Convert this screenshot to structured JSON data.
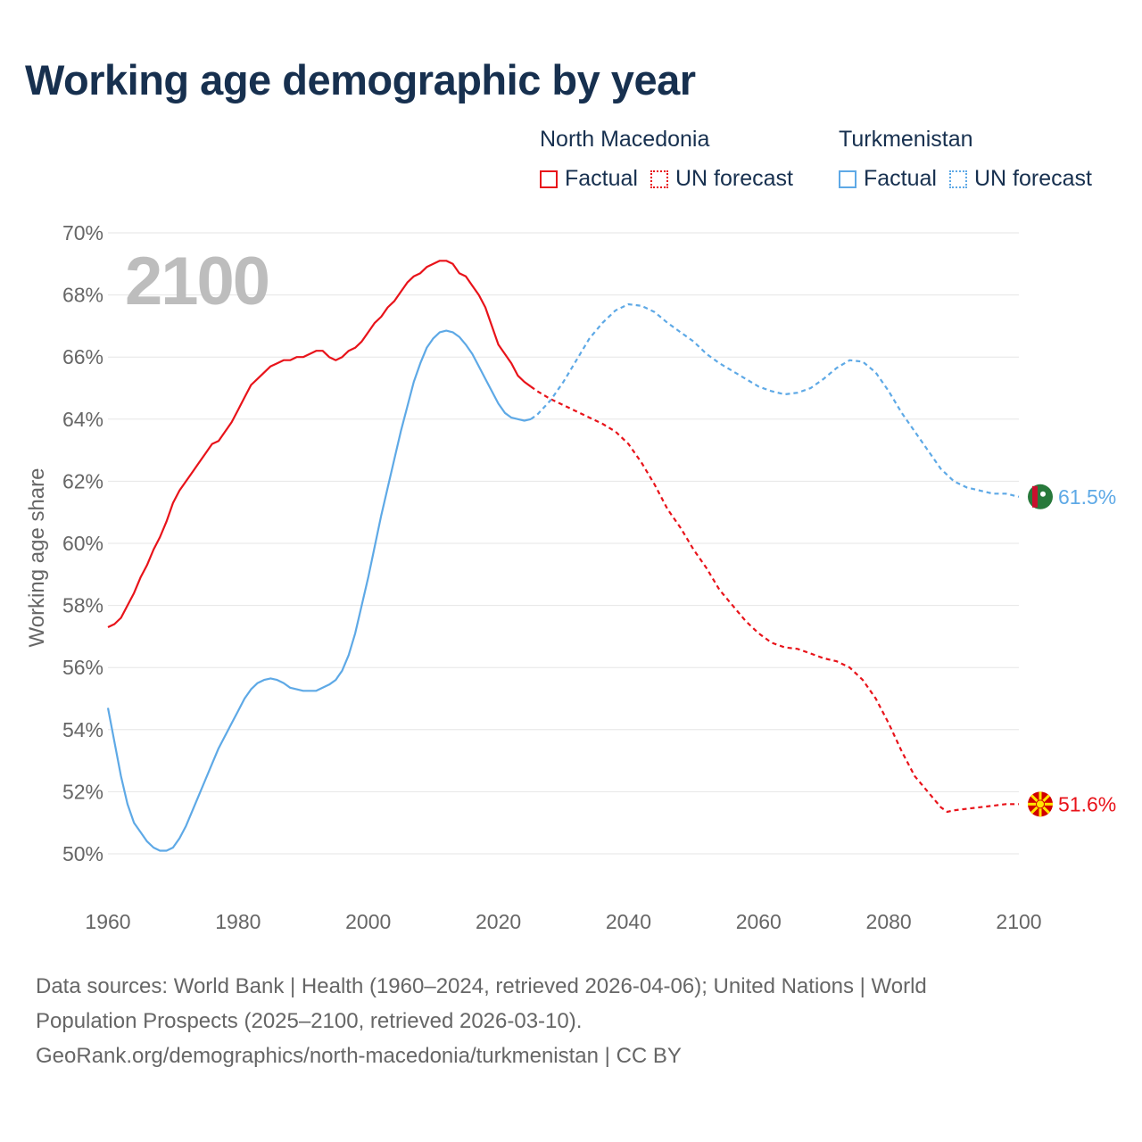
{
  "title": "Working age demographic by year",
  "year_overlay": "2100",
  "legend": {
    "groups": [
      {
        "name": "North Macedonia",
        "factual": "Factual",
        "forecast": "UN forecast",
        "color": "#e8131a"
      },
      {
        "name": "Turkmenistan",
        "factual": "Factual",
        "forecast": "UN forecast",
        "color": "#5ea9e6"
      }
    ]
  },
  "footer": {
    "line1": "Data sources: World Bank | Health (1960–2024, retrieved 2026-04-06); United Nations | World",
    "line2": "Population Prospects (2025–2100, retrieved 2026-03-10).",
    "line3": "GeoRank.org/demographics/north-macedonia/turkmenistan | CC BY"
  },
  "chart_data": {
    "type": "line",
    "title": "Working age demographic by year",
    "xlabel": "",
    "ylabel": "Working age share",
    "xlim": [
      1960,
      2100
    ],
    "ylim": [
      49,
      70
    ],
    "x_ticks": [
      1960,
      1980,
      2000,
      2020,
      2040,
      2060,
      2080,
      2100
    ],
    "y_ticks": [
      50,
      52,
      54,
      56,
      58,
      60,
      62,
      64,
      66,
      68,
      70
    ],
    "y_tick_labels": [
      "50%",
      "52%",
      "54%",
      "56%",
      "58%",
      "60%",
      "62%",
      "64%",
      "66%",
      "68%",
      "70%"
    ],
    "grid": true,
    "forecast_start_year": 2025,
    "series": [
      {
        "name": "North Macedonia",
        "color": "#e8131a",
        "end_label": "51.6%",
        "points": [
          [
            1960,
            57.3
          ],
          [
            1961,
            57.4
          ],
          [
            1962,
            57.6
          ],
          [
            1963,
            58.0
          ],
          [
            1964,
            58.4
          ],
          [
            1965,
            58.9
          ],
          [
            1966,
            59.3
          ],
          [
            1967,
            59.8
          ],
          [
            1968,
            60.2
          ],
          [
            1969,
            60.7
          ],
          [
            1970,
            61.3
          ],
          [
            1971,
            61.7
          ],
          [
            1972,
            62.0
          ],
          [
            1973,
            62.3
          ],
          [
            1974,
            62.6
          ],
          [
            1975,
            62.9
          ],
          [
            1976,
            63.2
          ],
          [
            1977,
            63.3
          ],
          [
            1978,
            63.6
          ],
          [
            1979,
            63.9
          ],
          [
            1980,
            64.3
          ],
          [
            1981,
            64.7
          ],
          [
            1982,
            65.1
          ],
          [
            1983,
            65.3
          ],
          [
            1984,
            65.5
          ],
          [
            1985,
            65.7
          ],
          [
            1986,
            65.8
          ],
          [
            1987,
            65.9
          ],
          [
            1988,
            65.9
          ],
          [
            1989,
            66.0
          ],
          [
            1990,
            66.0
          ],
          [
            1991,
            66.1
          ],
          [
            1992,
            66.2
          ],
          [
            1993,
            66.2
          ],
          [
            1994,
            66.0
          ],
          [
            1995,
            65.9
          ],
          [
            1996,
            66.0
          ],
          [
            1997,
            66.2
          ],
          [
            1998,
            66.3
          ],
          [
            1999,
            66.5
          ],
          [
            2000,
            66.8
          ],
          [
            2001,
            67.1
          ],
          [
            2002,
            67.3
          ],
          [
            2003,
            67.6
          ],
          [
            2004,
            67.8
          ],
          [
            2005,
            68.1
          ],
          [
            2006,
            68.4
          ],
          [
            2007,
            68.6
          ],
          [
            2008,
            68.7
          ],
          [
            2009,
            68.9
          ],
          [
            2010,
            69.0
          ],
          [
            2011,
            69.1
          ],
          [
            2012,
            69.1
          ],
          [
            2013,
            69.0
          ],
          [
            2014,
            68.7
          ],
          [
            2015,
            68.6
          ],
          [
            2016,
            68.3
          ],
          [
            2017,
            68.0
          ],
          [
            2018,
            67.6
          ],
          [
            2019,
            67.0
          ],
          [
            2020,
            66.4
          ],
          [
            2021,
            66.1
          ],
          [
            2022,
            65.8
          ],
          [
            2023,
            65.4
          ],
          [
            2024,
            65.2
          ],
          [
            2025,
            65.05
          ],
          [
            2026,
            64.9
          ],
          [
            2028,
            64.65
          ],
          [
            2030,
            64.45
          ],
          [
            2032,
            64.25
          ],
          [
            2034,
            64.05
          ],
          [
            2036,
            63.85
          ],
          [
            2038,
            63.6
          ],
          [
            2040,
            63.2
          ],
          [
            2042,
            62.6
          ],
          [
            2044,
            61.9
          ],
          [
            2046,
            61.1
          ],
          [
            2048,
            60.5
          ],
          [
            2050,
            59.8
          ],
          [
            2052,
            59.2
          ],
          [
            2054,
            58.5
          ],
          [
            2056,
            58.0
          ],
          [
            2058,
            57.5
          ],
          [
            2060,
            57.1
          ],
          [
            2062,
            56.8
          ],
          [
            2064,
            56.65
          ],
          [
            2066,
            56.6
          ],
          [
            2068,
            56.45
          ],
          [
            2070,
            56.3
          ],
          [
            2072,
            56.2
          ],
          [
            2074,
            56.0
          ],
          [
            2076,
            55.6
          ],
          [
            2078,
            55.0
          ],
          [
            2080,
            54.2
          ],
          [
            2082,
            53.3
          ],
          [
            2084,
            52.5
          ],
          [
            2086,
            52.0
          ],
          [
            2088,
            51.5
          ],
          [
            2089,
            51.35
          ],
          [
            2090,
            51.4
          ],
          [
            2092,
            51.45
          ],
          [
            2094,
            51.5
          ],
          [
            2096,
            51.55
          ],
          [
            2098,
            51.6
          ],
          [
            2100,
            51.6
          ]
        ]
      },
      {
        "name": "Turkmenistan",
        "color": "#5ea9e6",
        "end_label": "61.5%",
        "points": [
          [
            1960,
            54.7
          ],
          [
            1961,
            53.6
          ],
          [
            1962,
            52.5
          ],
          [
            1963,
            51.6
          ],
          [
            1964,
            51.0
          ],
          [
            1965,
            50.7
          ],
          [
            1966,
            50.4
          ],
          [
            1967,
            50.2
          ],
          [
            1968,
            50.1
          ],
          [
            1969,
            50.1
          ],
          [
            1970,
            50.2
          ],
          [
            1971,
            50.5
          ],
          [
            1972,
            50.9
          ],
          [
            1973,
            51.4
          ],
          [
            1974,
            51.9
          ],
          [
            1975,
            52.4
          ],
          [
            1976,
            52.9
          ],
          [
            1977,
            53.4
          ],
          [
            1978,
            53.8
          ],
          [
            1979,
            54.2
          ],
          [
            1980,
            54.6
          ],
          [
            1981,
            55.0
          ],
          [
            1982,
            55.3
          ],
          [
            1983,
            55.5
          ],
          [
            1984,
            55.6
          ],
          [
            1985,
            55.65
          ],
          [
            1986,
            55.6
          ],
          [
            1987,
            55.5
          ],
          [
            1988,
            55.35
          ],
          [
            1989,
            55.3
          ],
          [
            1990,
            55.25
          ],
          [
            1991,
            55.25
          ],
          [
            1992,
            55.25
          ],
          [
            1993,
            55.35
          ],
          [
            1994,
            55.45
          ],
          [
            1995,
            55.6
          ],
          [
            1996,
            55.9
          ],
          [
            1997,
            56.4
          ],
          [
            1998,
            57.1
          ],
          [
            1999,
            58.0
          ],
          [
            2000,
            58.9
          ],
          [
            2001,
            59.9
          ],
          [
            2002,
            60.9
          ],
          [
            2003,
            61.8
          ],
          [
            2004,
            62.7
          ],
          [
            2005,
            63.6
          ],
          [
            2006,
            64.4
          ],
          [
            2007,
            65.2
          ],
          [
            2008,
            65.8
          ],
          [
            2009,
            66.3
          ],
          [
            2010,
            66.6
          ],
          [
            2011,
            66.8
          ],
          [
            2012,
            66.85
          ],
          [
            2013,
            66.8
          ],
          [
            2014,
            66.65
          ],
          [
            2015,
            66.4
          ],
          [
            2016,
            66.1
          ],
          [
            2017,
            65.7
          ],
          [
            2018,
            65.3
          ],
          [
            2019,
            64.9
          ],
          [
            2020,
            64.5
          ],
          [
            2021,
            64.2
          ],
          [
            2022,
            64.05
          ],
          [
            2023,
            64.0
          ],
          [
            2024,
            63.95
          ],
          [
            2025,
            64.0
          ],
          [
            2026,
            64.15
          ],
          [
            2028,
            64.6
          ],
          [
            2030,
            65.2
          ],
          [
            2032,
            65.9
          ],
          [
            2034,
            66.6
          ],
          [
            2036,
            67.1
          ],
          [
            2038,
            67.5
          ],
          [
            2040,
            67.7
          ],
          [
            2042,
            67.65
          ],
          [
            2044,
            67.45
          ],
          [
            2046,
            67.1
          ],
          [
            2048,
            66.8
          ],
          [
            2050,
            66.5
          ],
          [
            2052,
            66.1
          ],
          [
            2054,
            65.8
          ],
          [
            2056,
            65.55
          ],
          [
            2058,
            65.3
          ],
          [
            2060,
            65.05
          ],
          [
            2062,
            64.9
          ],
          [
            2064,
            64.8
          ],
          [
            2066,
            64.85
          ],
          [
            2068,
            65.0
          ],
          [
            2070,
            65.3
          ],
          [
            2072,
            65.65
          ],
          [
            2074,
            65.9
          ],
          [
            2076,
            65.85
          ],
          [
            2078,
            65.5
          ],
          [
            2080,
            64.9
          ],
          [
            2082,
            64.2
          ],
          [
            2084,
            63.6
          ],
          [
            2086,
            63.0
          ],
          [
            2088,
            62.4
          ],
          [
            2090,
            62.0
          ],
          [
            2092,
            61.8
          ],
          [
            2094,
            61.7
          ],
          [
            2096,
            61.6
          ],
          [
            2098,
            61.6
          ],
          [
            2100,
            61.5
          ]
        ]
      }
    ]
  }
}
